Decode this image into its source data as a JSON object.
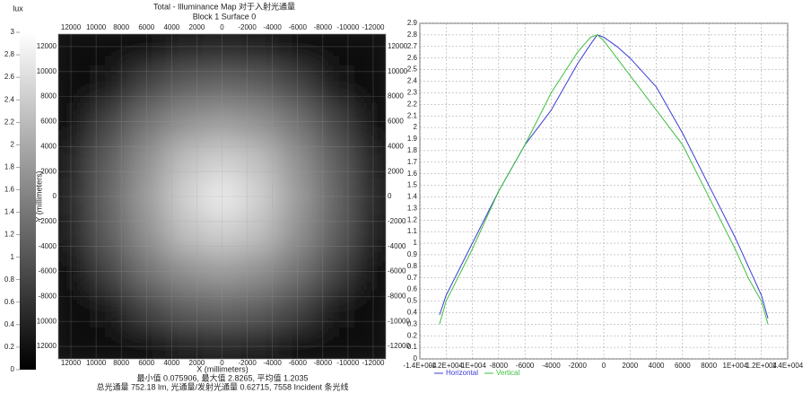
{
  "chart_data": [
    {
      "type": "heatmap",
      "title": "Total - Illuminance Map 对于入射光通量",
      "subtitle": "Block 1 Surface 0",
      "xlabel": "X (millimeters)",
      "ylabel": "Y (millimeters)",
      "colorbar_label": "lux",
      "annotations": [
        "最小值 0.075906, 最大值 2.8265, 平均值 1.2035",
        "总光通量 752.18 lm, 光通量/发射光通量 0.62715, 7558 Incident 条光线"
      ],
      "x": [
        -12000,
        -9000,
        -6000,
        -3000,
        0,
        3000,
        6000,
        9000,
        12000
      ],
      "y": [
        12000,
        9000,
        6000,
        3000,
        0,
        -3000,
        -6000,
        -9000,
        -12000
      ],
      "z": [
        [
          0.08,
          0.1,
          0.2,
          0.4,
          0.45,
          0.4,
          0.2,
          0.1,
          0.08
        ],
        [
          0.1,
          0.3,
          0.8,
          1.1,
          1.2,
          1.1,
          0.8,
          0.3,
          0.1
        ],
        [
          0.2,
          0.8,
          1.35,
          1.7,
          1.85,
          1.7,
          1.35,
          0.8,
          0.2
        ],
        [
          0.4,
          1.1,
          1.7,
          2.25,
          2.45,
          2.25,
          1.7,
          1.1,
          0.4
        ],
        [
          0.45,
          1.2,
          1.85,
          2.45,
          2.8,
          2.45,
          1.85,
          1.2,
          0.45
        ],
        [
          0.4,
          1.1,
          1.7,
          2.25,
          2.45,
          2.25,
          1.7,
          1.1,
          0.4
        ],
        [
          0.2,
          0.8,
          1.35,
          1.7,
          1.85,
          1.7,
          1.35,
          0.8,
          0.2
        ],
        [
          0.1,
          0.3,
          0.8,
          1.1,
          1.2,
          1.1,
          0.8,
          0.3,
          0.1
        ],
        [
          0.08,
          0.1,
          0.2,
          0.4,
          0.45,
          0.4,
          0.2,
          0.1,
          0.08
        ]
      ],
      "xlim": [
        13000,
        -13000
      ],
      "ylim": [
        -13000,
        13000
      ],
      "xticks": [
        12000,
        10000,
        8000,
        6000,
        4000,
        2000,
        0,
        -2000,
        -4000,
        -6000,
        -8000,
        -10000,
        -12000
      ],
      "yticks": [
        -12000,
        -10000,
        -8000,
        -6000,
        -4000,
        -2000,
        0,
        2000,
        4000,
        6000,
        8000,
        10000,
        12000
      ],
      "zlim": [
        0,
        3
      ],
      "zticks": [
        0,
        0.2,
        0.4,
        0.6,
        0.8,
        1,
        1.2,
        1.4,
        1.6,
        1.8,
        2,
        2.2,
        2.4,
        2.6,
        2.8,
        3
      ],
      "grid": true
    },
    {
      "type": "line",
      "x": [
        -12500,
        -12000,
        -10000,
        -8000,
        -6000,
        -4000,
        -2000,
        -1000,
        -500,
        0,
        1000,
        2000,
        4000,
        6000,
        8000,
        10000,
        11000,
        12000,
        12500
      ],
      "series": [
        {
          "name": "Horizontal",
          "color": "#3b3bd6",
          "values": [
            0.38,
            0.55,
            1.0,
            1.45,
            1.85,
            2.15,
            2.55,
            2.72,
            2.8,
            2.78,
            2.7,
            2.6,
            2.35,
            1.95,
            1.5,
            1.05,
            0.8,
            0.55,
            0.35
          ]
        },
        {
          "name": "Vertical",
          "color": "#3fbf3f",
          "values": [
            0.3,
            0.5,
            0.95,
            1.45,
            1.85,
            2.3,
            2.65,
            2.78,
            2.8,
            2.75,
            2.6,
            2.45,
            2.15,
            1.85,
            1.4,
            0.95,
            0.7,
            0.5,
            0.3
          ]
        }
      ],
      "xlim": [
        -14000,
        14000
      ],
      "ylim": [
        0,
        2.9
      ],
      "xticks": [
        {
          "value": -14000,
          "label": "-1.4E+004"
        },
        {
          "value": -12000,
          "label": "-1.2E+004"
        },
        {
          "value": -10000,
          "label": "-1E+004"
        },
        -8000,
        -6000,
        -4000,
        -2000,
        0,
        2000,
        4000,
        6000,
        8000,
        {
          "value": 10000,
          "label": "1E+004"
        },
        {
          "value": 12000,
          "label": "1.2E+004"
        },
        {
          "value": 14000,
          "label": "1.4E+004"
        }
      ],
      "yticks": [
        0,
        0.1,
        0.2,
        0.3,
        0.4,
        0.5,
        0.6,
        0.7,
        0.8,
        0.9,
        1,
        1.1,
        1.2,
        1.3,
        1.4,
        1.5,
        1.6,
        1.7,
        1.8,
        1.9,
        2,
        2.1,
        2.2,
        2.3,
        2.4,
        2.5,
        2.6,
        2.7,
        2.8,
        2.9
      ],
      "grid": true,
      "legend": "bottom-left"
    }
  ]
}
